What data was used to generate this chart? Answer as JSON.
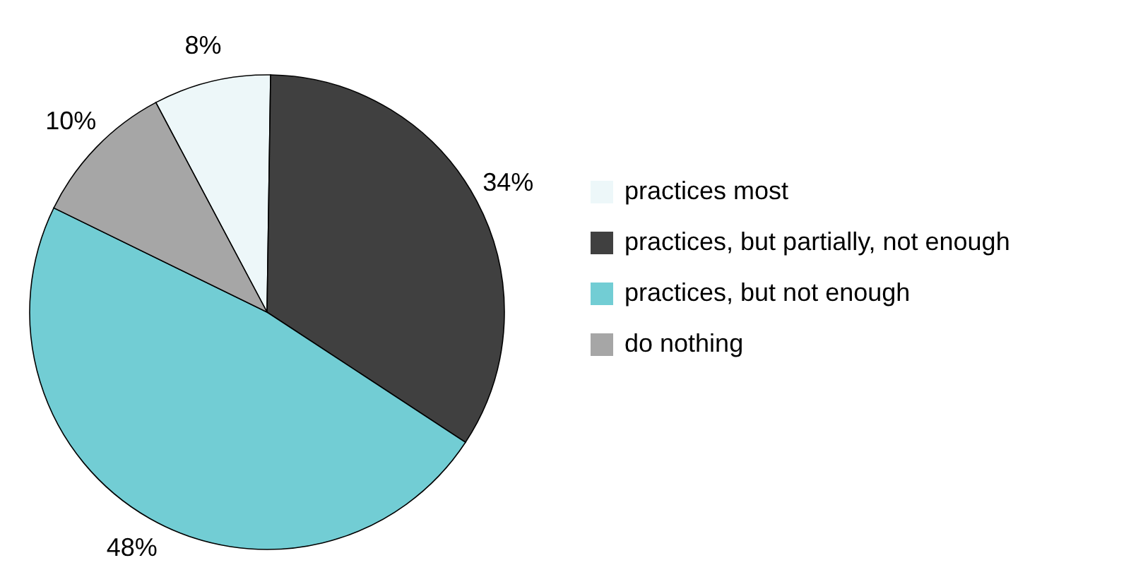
{
  "chart_data": {
    "type": "pie",
    "categories": [
      "practices most",
      "practices, but partially, not enough",
      "practices, but not enough",
      "do nothing"
    ],
    "values": [
      8,
      34,
      48,
      10
    ],
    "colors": [
      "#edf7f9",
      "#404040",
      "#72cdd4",
      "#a6a6a6"
    ],
    "value_labels": [
      "8%",
      "34%",
      "48%",
      "10%"
    ],
    "legend": "right"
  }
}
